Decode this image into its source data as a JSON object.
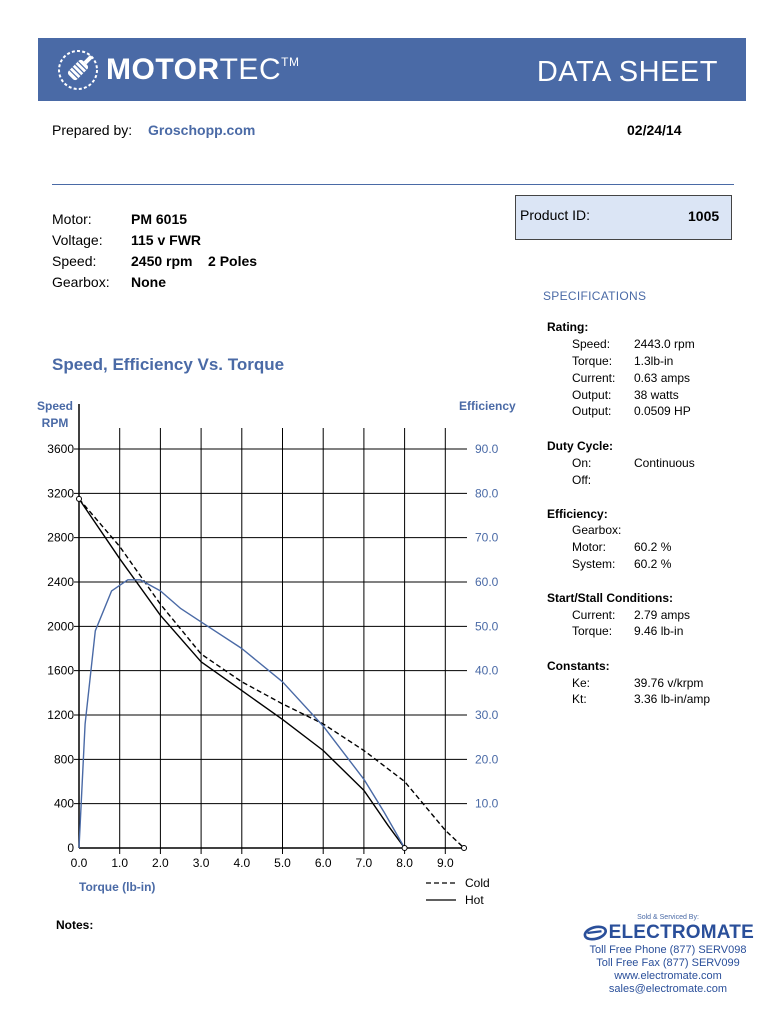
{
  "header": {
    "brand_bold": "MOTOR",
    "brand_light": "TEC",
    "trademark": "TM",
    "title": "DATA SHEET",
    "banner_color": "#4a6aa6"
  },
  "prepared": {
    "label": "Prepared by:",
    "value": "Groschopp.com",
    "date": "02/24/14"
  },
  "motor_info": [
    {
      "label": "Motor:",
      "value": "PM  6015"
    },
    {
      "label": "Voltage:",
      "value": "115 v FWR"
    },
    {
      "label": "Speed:",
      "value": "2450 rpm    2 Poles"
    },
    {
      "label": "Gearbox:",
      "value": "None"
    }
  ],
  "product": {
    "label": "Product ID:",
    "value": "1005"
  },
  "specifications": {
    "title": "SPECIFICATIONS",
    "rating": {
      "heading": "Rating:",
      "items": [
        {
          "k": "Speed:",
          "v": "2443.0 rpm"
        },
        {
          "k": "Torque:",
          "v": "1.3lb-in"
        },
        {
          "k": "Current:",
          "v": "0.63 amps"
        },
        {
          "k": "Output:",
          "v": "38 watts"
        },
        {
          "k": "Output:",
          "v": "0.0509 HP"
        }
      ]
    },
    "duty": {
      "heading": "Duty Cycle:",
      "items": [
        {
          "k": "On:",
          "v": "Continuous"
        },
        {
          "k": "Off:",
          "v": ""
        }
      ]
    },
    "efficiency": {
      "heading": "Efficiency:",
      "items": [
        {
          "k": "Gearbox:",
          "v": ""
        },
        {
          "k": "Motor:",
          "v": "60.2 %"
        },
        {
          "k": "System:",
          "v": "60.2 %"
        }
      ]
    },
    "stall": {
      "heading": "Start/Stall Conditions:",
      "items": [
        {
          "k": "Current:",
          "v": "2.79 amps"
        },
        {
          "k": "Torque:",
          "v": "9.46 lb-in"
        }
      ]
    },
    "constants": {
      "heading": "Constants:",
      "items": [
        {
          "k": "Ke:",
          "v": "39.76 v/krpm"
        },
        {
          "k": "Kt:",
          "v": "3.36 lb-in/amp"
        }
      ]
    }
  },
  "chart_data": {
    "type": "line",
    "title": "Speed, Efficiency Vs. Torque",
    "ylabel_left": [
      "Speed",
      "RPM"
    ],
    "ylabel_right": "Efficiency",
    "xlabel": "Torque  (lb-in)",
    "xlim": [
      0,
      9.5
    ],
    "ylim_left": [
      0,
      3600
    ],
    "ylim_right": [
      0,
      90
    ],
    "x_ticks": [
      "0.0",
      "1.0",
      "2.0",
      "3.0",
      "4.0",
      "5.0",
      "6.0",
      "7.0",
      "8.0",
      "9.0"
    ],
    "y_left_ticks": [
      "0",
      "400",
      "800",
      "1200",
      "1600",
      "2000",
      "2400",
      "2800",
      "3200",
      "3600"
    ],
    "y_right_ticks": [
      "10.0",
      "20.0",
      "30.0",
      "40.0",
      "50.0",
      "60.0",
      "70.0",
      "80.0",
      "90.0"
    ],
    "grid": true,
    "legend": [
      {
        "label": "Cold",
        "style": "dashed"
      },
      {
        "label": "Hot",
        "style": "solid"
      }
    ],
    "series": [
      {
        "name": "Cold",
        "axis": "left",
        "style": "dashed",
        "color": "#000000",
        "x": [
          0,
          1,
          2,
          3,
          4,
          5,
          6,
          7,
          8,
          9,
          9.46
        ],
        "y": [
          3150,
          2720,
          2200,
          1750,
          1500,
          1300,
          1120,
          880,
          600,
          160,
          0
        ]
      },
      {
        "name": "Hot",
        "axis": "left",
        "style": "solid",
        "color": "#000000",
        "x": [
          0,
          1,
          2,
          3,
          4,
          5,
          6,
          7,
          7.6,
          8.0
        ],
        "y": [
          3150,
          2610,
          2100,
          1680,
          1420,
          1160,
          880,
          520,
          200,
          0
        ]
      },
      {
        "name": "Efficiency",
        "axis": "right",
        "style": "solid",
        "color": "#4a6aa6",
        "x": [
          0,
          0.15,
          0.4,
          0.8,
          1.2,
          1.5,
          2,
          2.5,
          3,
          4,
          5,
          6,
          7,
          7.5,
          8.0
        ],
        "y": [
          0,
          28,
          49,
          58,
          60.5,
          60.5,
          58,
          54,
          51,
          45,
          37.5,
          27.5,
          15.5,
          8,
          0
        ]
      }
    ]
  },
  "notes": {
    "label": "Notes:"
  },
  "footer": {
    "sold_by": "Sold & Serviced By:",
    "company": "ELECTROMATE",
    "lines": [
      "Toll Free Phone  (877) SERV098",
      "Toll Free Fax  (877) SERV099",
      "www.electromate.com",
      "sales@electromate.com"
    ]
  }
}
